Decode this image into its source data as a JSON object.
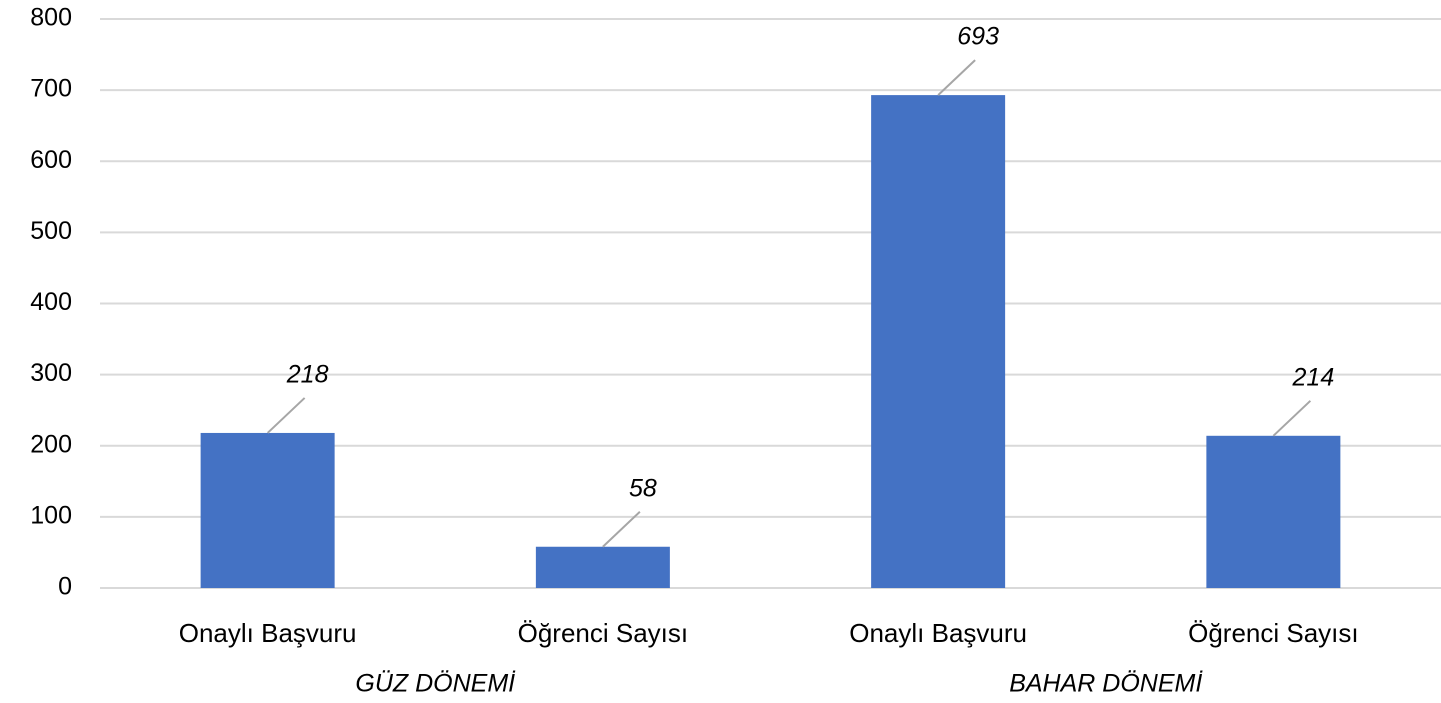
{
  "chart_data": {
    "type": "bar",
    "groups": [
      {
        "name": "GÜZ DÖNEMİ",
        "categories": [
          "Onaylı Başvuru",
          "Öğrenci Sayısı"
        ],
        "values": [
          218,
          58
        ]
      },
      {
        "name": "BAHAR DÖNEMİ",
        "categories": [
          "Onaylı Başvuru",
          "Öğrenci Sayısı"
        ],
        "values": [
          693,
          214
        ]
      }
    ],
    "color": "#4472c4",
    "ylim": [
      0,
      800
    ],
    "yticks": [
      0,
      100,
      200,
      300,
      400,
      500,
      600,
      700,
      800
    ],
    "grid": true
  }
}
